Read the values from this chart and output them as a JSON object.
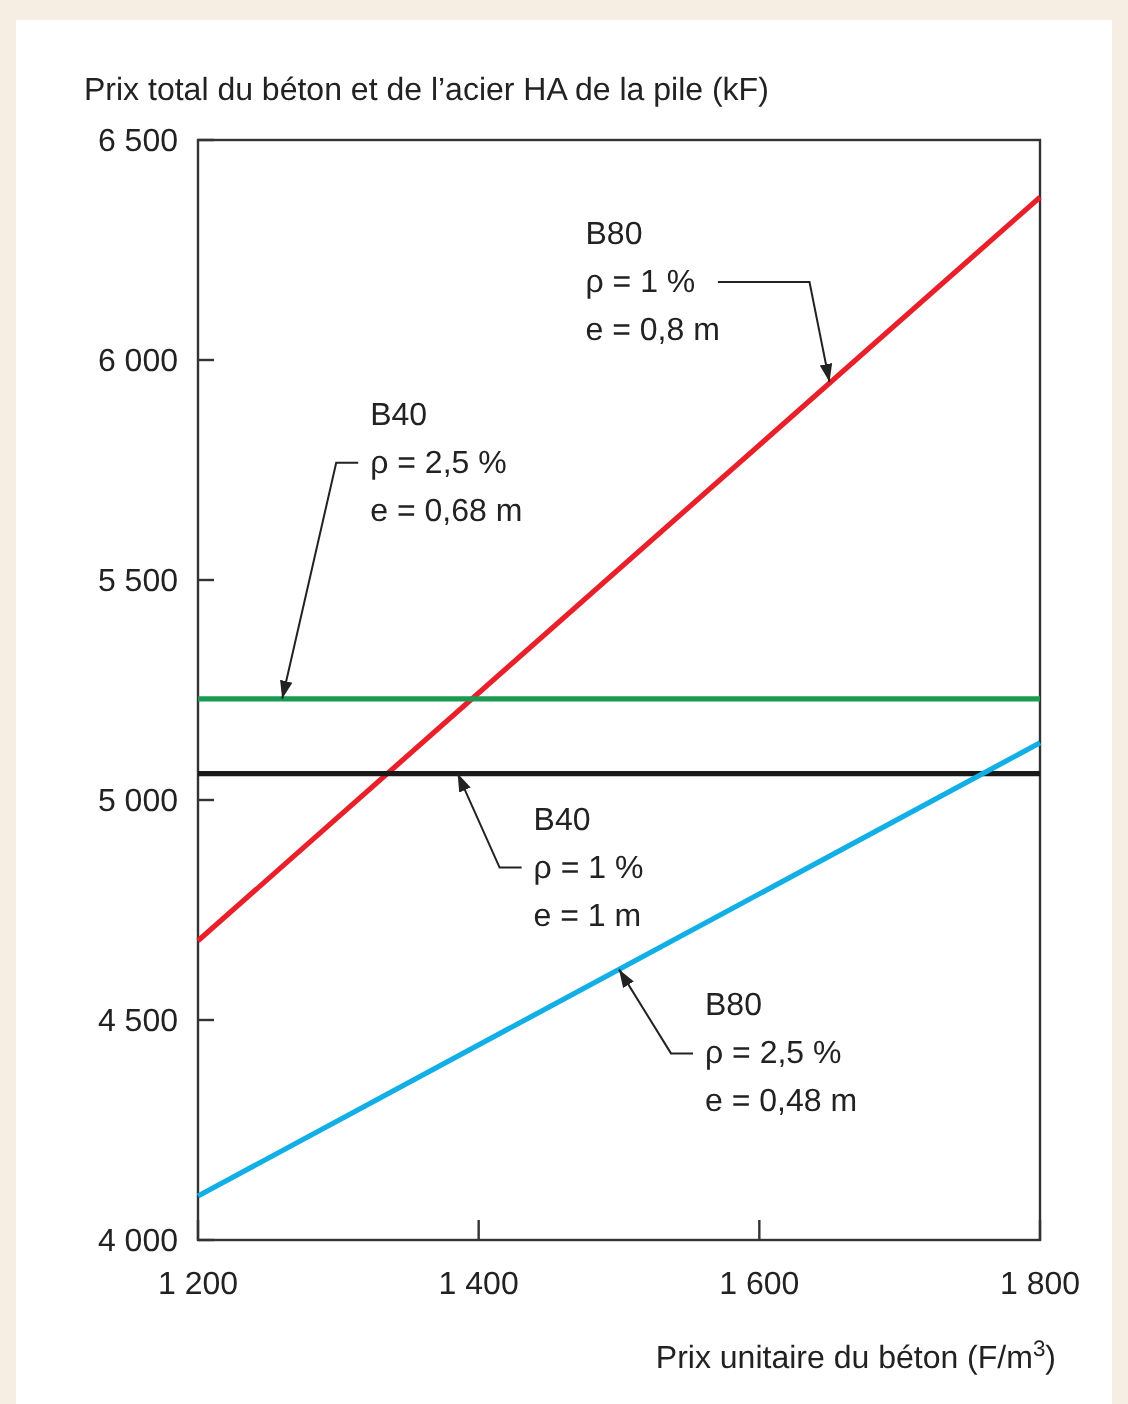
{
  "chart_data": {
    "type": "line",
    "ylabel": "Prix total du béton et de l’acier HA de la pile (kF)",
    "xlabel": "Prix unitaire du béton (F/m$^{3}$)",
    "xlim": [
      1200,
      1800
    ],
    "ylim": [
      4000,
      6500
    ],
    "xticks": [
      {
        "value": 1200,
        "label": "1 200"
      },
      {
        "value": 1400,
        "label": "1 400"
      },
      {
        "value": 1600,
        "label": "1 600"
      },
      {
        "value": 1800,
        "label": "1 800"
      }
    ],
    "yticks": [
      {
        "value": 4000,
        "label": "4 000"
      },
      {
        "value": 4500,
        "label": "4 500"
      },
      {
        "value": 5000,
        "label": "5 000"
      },
      {
        "value": 5500,
        "label": "5 500"
      },
      {
        "value": 6000,
        "label": "6 000"
      },
      {
        "value": 6500,
        "label": "6 500"
      }
    ],
    "grid": false,
    "x": [
      1200,
      1800
    ],
    "series": [
      {
        "color": "#e8202a",
        "values": [
          4680,
          6370
        ]
      },
      {
        "color": "#1a9a50",
        "values": [
          5230,
          5230
        ]
      },
      {
        "color": "#1a1a1a",
        "values": [
          5060,
          5060
        ]
      },
      {
        "color": "#12aee6",
        "values": [
          4100,
          5130
        ]
      }
    ],
    "annotations": [
      {
        "text": "B80\nρ = 1 %\ne = 0,8 m",
        "x": 1650,
        "y": 5950
      },
      {
        "text": "B40\nρ = 2,5 %\ne = 0,68 m",
        "x": 1260,
        "y": 5230
      },
      {
        "text": "B40\nρ = 1 %\ne = 1 m",
        "x": 1385,
        "y": 5060
      },
      {
        "text": "B80\nρ = 2,5 %\ne = 0,48 m",
        "x": 1500,
        "y": 4615
      }
    ]
  }
}
